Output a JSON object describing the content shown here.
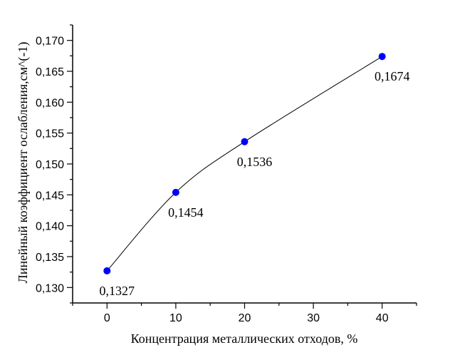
{
  "chart_data": {
    "type": "line",
    "title": "",
    "xlabel": "Концентрация металлических отходов, %",
    "ylabel": "Линейный коэффициент ослабления,см^(-1)",
    "x": [
      0,
      10,
      20,
      40
    ],
    "series": [
      {
        "name": "Линейный коэффициент ослабления",
        "values": [
          0.1327,
          0.1454,
          0.1536,
          0.1674
        ],
        "labels": [
          "0,1327",
          "0,1454",
          "0,1536",
          "0,1674"
        ],
        "marker": "circle",
        "marker_color": "#0000ff",
        "line_color": "#000000",
        "line_style": "smooth-spline"
      }
    ],
    "xlim": [
      -5,
      45
    ],
    "ylim": [
      0.1275,
      0.1725
    ],
    "x_ticks": [
      0,
      10,
      20,
      30,
      40
    ],
    "x_tick_labels": [
      "0",
      "10",
      "20",
      "30",
      "40"
    ],
    "y_ticks": [
      0.13,
      0.135,
      0.14,
      0.145,
      0.15,
      0.155,
      0.16,
      0.165,
      0.17
    ],
    "y_tick_labels": [
      "0,130",
      "0,135",
      "0,140",
      "0,145",
      "0,150",
      "0,155",
      "0,160",
      "0,165",
      "0,170"
    ],
    "x_minor_step": 5,
    "y_minor_step": 0.0025,
    "grid": false,
    "legend": "none"
  }
}
